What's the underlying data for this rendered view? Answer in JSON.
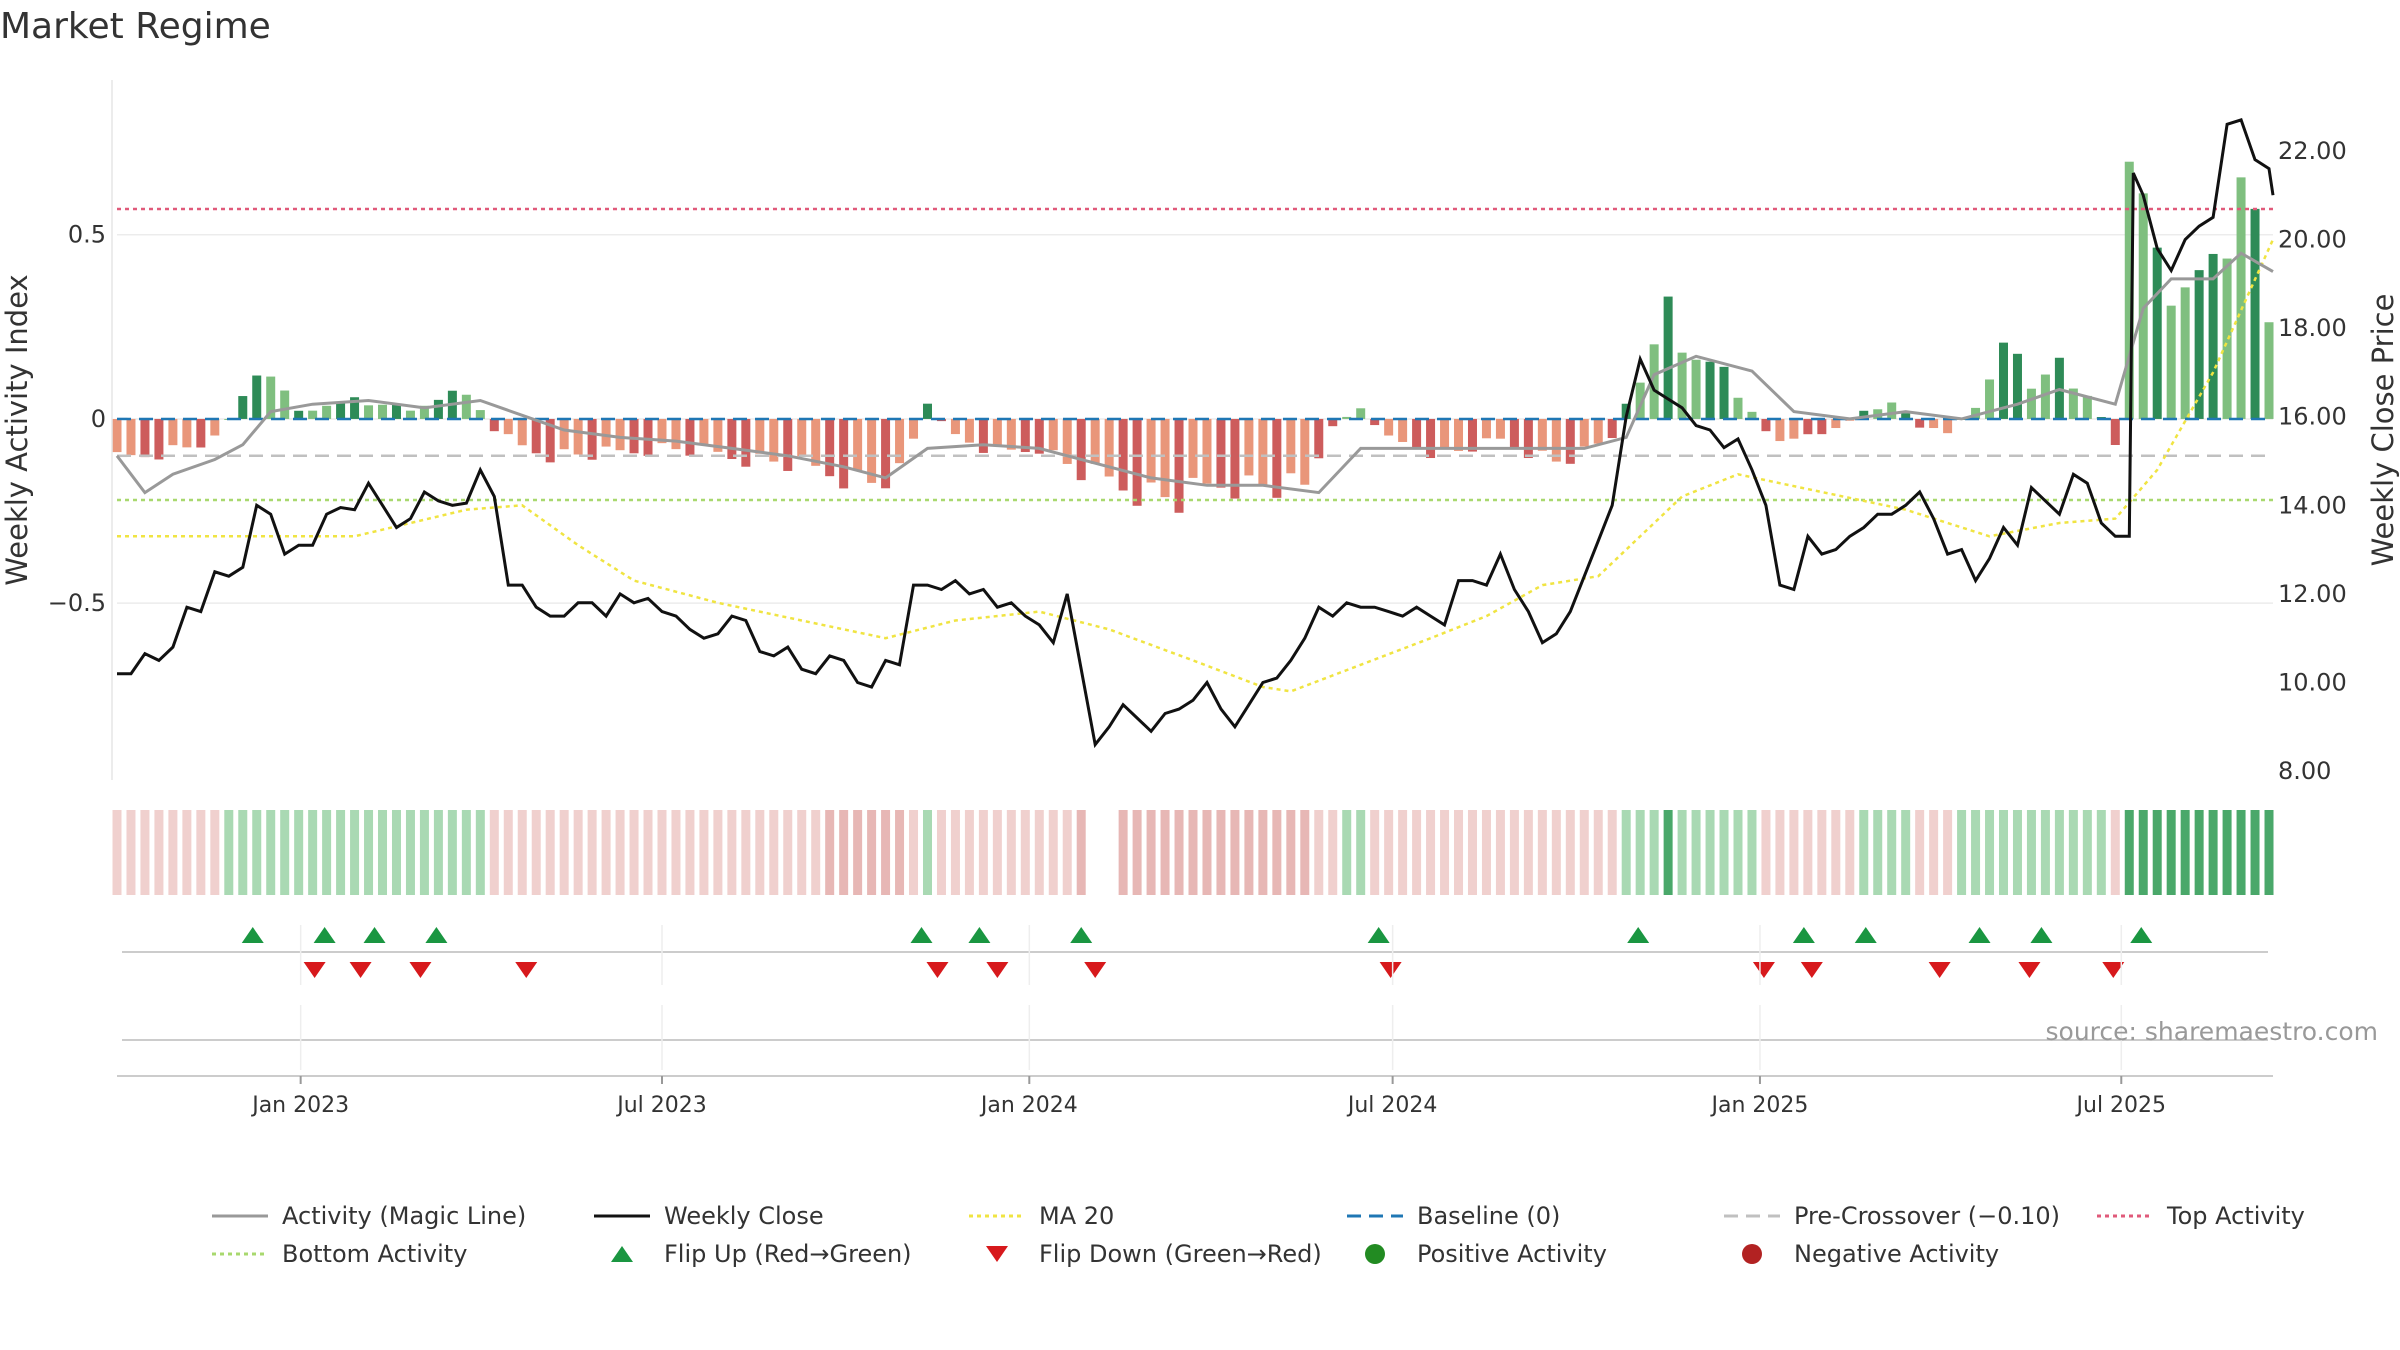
{
  "title": "Market Regime",
  "source": "source: sharemaestro.com",
  "colors": {
    "pos_strong": "#2e8b57",
    "pos_light": "#7fbf7f",
    "neg_strong": "#cd5c5c",
    "neg_light": "#e9967a",
    "close": "#111111",
    "magic": "#999999",
    "ma20": "#f0e442",
    "baseline": "#1f77b4",
    "pre": "#c0c0c0",
    "top": "#e05a7a",
    "bottom": "#a8d86e",
    "flip_up": "#1a9641",
    "flip_down": "#d7191c"
  },
  "chart_data": {
    "type": "bar+line",
    "title": "Market Regime",
    "ylabel_left": "Weekly Activity Index",
    "ylabel_right": "Weekly Close Price",
    "ylim_left": [
      -0.98,
      0.92
    ],
    "ylim_right": [
      7.8,
      23.6
    ],
    "left_ticks": [
      {
        "v": 0.5,
        "label": "0.5"
      },
      {
        "v": 0,
        "label": "0"
      },
      {
        "v": -0.5,
        "label": "−0.5"
      }
    ],
    "right_ticks": [
      {
        "v": 22,
        "label": "22.00"
      },
      {
        "v": 20,
        "label": "20.00"
      },
      {
        "v": 18,
        "label": "18.00"
      },
      {
        "v": 16,
        "label": "16.00"
      },
      {
        "v": 14,
        "label": "14.00"
      },
      {
        "v": 12,
        "label": "12.00"
      },
      {
        "v": 10,
        "label": "10.00"
      },
      {
        "v": 8,
        "label": "8.00"
      }
    ],
    "date_start": "2022-10-01",
    "date_end": "2025-09-15",
    "x_ticks": [
      {
        "date": "2023-01-01",
        "label": "Jan 2023"
      },
      {
        "date": "2023-07-01",
        "label": "Jul 2023"
      },
      {
        "date": "2024-01-01",
        "label": "Jan 2024"
      },
      {
        "date": "2024-07-01",
        "label": "Jul 2024"
      },
      {
        "date": "2025-01-01",
        "label": "Jan 2025"
      },
      {
        "date": "2025-07-01",
        "label": "Jul 2025"
      }
    ],
    "reference_lines": {
      "top_activity": 0.57,
      "pre_crossover": -0.1,
      "bottom_activity": -0.22,
      "baseline": 0
    },
    "activity_anchors": [
      [
        "2022-10-01",
        -0.12
      ],
      [
        "2022-10-15",
        -0.1
      ],
      [
        "2022-11-05",
        -0.08
      ],
      [
        "2022-11-19",
        -0.06
      ],
      [
        "2022-12-03",
        0.06
      ],
      [
        "2022-12-17",
        0.14
      ],
      [
        "2022-12-31",
        0.02
      ],
      [
        "2023-01-14",
        0.04
      ],
      [
        "2023-01-28",
        0.05
      ],
      [
        "2023-02-11",
        0.04
      ],
      [
        "2023-02-25",
        0.03
      ],
      [
        "2023-03-11",
        0.05
      ],
      [
        "2023-03-25",
        0.08
      ],
      [
        "2023-04-08",
        -0.03
      ],
      [
        "2023-04-22",
        -0.08
      ],
      [
        "2023-05-06",
        -0.1
      ],
      [
        "2023-05-20",
        -0.1
      ],
      [
        "2023-06-03",
        -0.1
      ],
      [
        "2023-07-01",
        -0.08
      ],
      [
        "2023-07-29",
        -0.1
      ],
      [
        "2023-08-26",
        -0.12
      ],
      [
        "2023-09-23",
        -0.15
      ],
      [
        "2023-10-14",
        -0.18
      ],
      [
        "2023-10-28",
        -0.16
      ],
      [
        "2023-11-11",
        0.04
      ],
      [
        "2023-11-25",
        -0.05
      ],
      [
        "2023-12-16",
        -0.1
      ],
      [
        "2024-01-06",
        -0.08
      ],
      [
        "2024-01-27",
        -0.15
      ],
      [
        "2024-02-24",
        -0.2
      ],
      [
        "2024-03-16",
        -0.23
      ],
      [
        "2024-04-06",
        -0.18
      ],
      [
        "2024-04-27",
        -0.19
      ],
      [
        "2024-05-18",
        -0.2
      ],
      [
        "2024-05-31",
        -0.02
      ],
      [
        "2024-06-15",
        0.03
      ],
      [
        "2024-06-29",
        -0.06
      ],
      [
        "2024-07-27",
        -0.1
      ],
      [
        "2024-08-24",
        -0.06
      ],
      [
        "2024-09-21",
        -0.12
      ],
      [
        "2024-10-05",
        -0.1
      ],
      [
        "2024-10-19",
        -0.05
      ],
      [
        "2024-11-02",
        0.12
      ],
      [
        "2024-11-16",
        0.3
      ],
      [
        "2024-11-30",
        0.18
      ],
      [
        "2024-12-14",
        0.12
      ],
      [
        "2024-12-28",
        0.02
      ],
      [
        "2025-01-11",
        -0.08
      ],
      [
        "2025-01-25",
        -0.04
      ],
      [
        "2025-02-08",
        -0.03
      ],
      [
        "2025-02-22",
        0.02
      ],
      [
        "2025-03-08",
        0.05
      ],
      [
        "2025-03-22",
        -0.02
      ],
      [
        "2025-04-05",
        -0.04
      ],
      [
        "2025-04-19",
        0.04
      ],
      [
        "2025-05-03",
        0.2
      ],
      [
        "2025-05-17",
        0.1
      ],
      [
        "2025-05-31",
        0.15
      ],
      [
        "2025-06-14",
        0.07
      ],
      [
        "2025-06-28",
        -0.06
      ],
      [
        "2025-07-05",
        0.85
      ],
      [
        "2025-07-19",
        0.42
      ],
      [
        "2025-08-02",
        0.4
      ],
      [
        "2025-08-16",
        0.38
      ],
      [
        "2025-08-30",
        0.68
      ],
      [
        "2025-09-13",
        0.35
      ]
    ],
    "close_anchors": [
      [
        "2022-10-01",
        10.2
      ],
      [
        "2022-10-08",
        10.2
      ],
      [
        "2022-10-15",
        10.65
      ],
      [
        "2022-10-22",
        10.5
      ],
      [
        "2022-10-29",
        10.8
      ],
      [
        "2022-11-05",
        11.7
      ],
      [
        "2022-11-12",
        11.6
      ],
      [
        "2022-11-19",
        12.5
      ],
      [
        "2022-11-26",
        12.4
      ],
      [
        "2022-12-03",
        12.6
      ],
      [
        "2022-12-10",
        14.0
      ],
      [
        "2022-12-17",
        13.8
      ],
      [
        "2022-12-24",
        12.9
      ],
      [
        "2022-12-31",
        13.1
      ],
      [
        "2023-01-07",
        13.1
      ],
      [
        "2023-01-14",
        13.8
      ],
      [
        "2023-01-21",
        13.95
      ],
      [
        "2023-01-28",
        13.9
      ],
      [
        "2023-02-04",
        14.5
      ],
      [
        "2023-02-11",
        14.0
      ],
      [
        "2023-02-18",
        13.5
      ],
      [
        "2023-02-25",
        13.7
      ],
      [
        "2023-03-04",
        14.3
      ],
      [
        "2023-03-11",
        14.1
      ],
      [
        "2023-03-18",
        14.0
      ],
      [
        "2023-03-25",
        14.05
      ],
      [
        "2023-04-01",
        14.8
      ],
      [
        "2023-04-08",
        14.2
      ],
      [
        "2023-04-15",
        12.2
      ],
      [
        "2023-04-22",
        12.2
      ],
      [
        "2023-04-29",
        11.7
      ],
      [
        "2023-05-06",
        11.5
      ],
      [
        "2023-05-13",
        11.5
      ],
      [
        "2023-05-20",
        11.8
      ],
      [
        "2023-05-27",
        11.8
      ],
      [
        "2023-06-03",
        11.5
      ],
      [
        "2023-06-10",
        12.0
      ],
      [
        "2023-06-17",
        11.8
      ],
      [
        "2023-06-24",
        11.9
      ],
      [
        "2023-07-01",
        11.6
      ],
      [
        "2023-07-08",
        11.5
      ],
      [
        "2023-07-15",
        11.2
      ],
      [
        "2023-07-22",
        11.0
      ],
      [
        "2023-07-29",
        11.1
      ],
      [
        "2023-08-05",
        11.5
      ],
      [
        "2023-08-12",
        11.4
      ],
      [
        "2023-08-19",
        10.7
      ],
      [
        "2023-08-26",
        10.6
      ],
      [
        "2023-09-02",
        10.8
      ],
      [
        "2023-09-09",
        10.3
      ],
      [
        "2023-09-16",
        10.2
      ],
      [
        "2023-09-23",
        10.6
      ],
      [
        "2023-09-30",
        10.5
      ],
      [
        "2023-10-07",
        10.0
      ],
      [
        "2023-10-14",
        9.9
      ],
      [
        "2023-10-21",
        10.5
      ],
      [
        "2023-10-28",
        10.4
      ],
      [
        "2023-11-04",
        12.2
      ],
      [
        "2023-11-11",
        12.2
      ],
      [
        "2023-11-18",
        12.1
      ],
      [
        "2023-11-25",
        12.3
      ],
      [
        "2023-12-02",
        12.0
      ],
      [
        "2023-12-09",
        12.1
      ],
      [
        "2023-12-16",
        11.7
      ],
      [
        "2023-12-23",
        11.8
      ],
      [
        "2023-12-30",
        11.5
      ],
      [
        "2024-01-06",
        11.3
      ],
      [
        "2024-01-13",
        10.9
      ],
      [
        "2024-01-20",
        12.0
      ],
      [
        "2024-01-27",
        10.3
      ],
      [
        "2024-02-03",
        8.6
      ],
      [
        "2024-02-10",
        9.0
      ],
      [
        "2024-02-17",
        9.5
      ],
      [
        "2024-02-24",
        9.2
      ],
      [
        "2024-03-02",
        8.9
      ],
      [
        "2024-03-09",
        9.3
      ],
      [
        "2024-03-16",
        9.4
      ],
      [
        "2024-03-23",
        9.6
      ],
      [
        "2024-03-30",
        10.0
      ],
      [
        "2024-04-06",
        9.4
      ],
      [
        "2024-04-13",
        9.0
      ],
      [
        "2024-04-20",
        9.5
      ],
      [
        "2024-04-27",
        10.0
      ],
      [
        "2024-05-04",
        10.1
      ],
      [
        "2024-05-11",
        10.5
      ],
      [
        "2024-05-18",
        11.0
      ],
      [
        "2024-05-25",
        11.7
      ],
      [
        "2024-06-01",
        11.5
      ],
      [
        "2024-06-08",
        11.8
      ],
      [
        "2024-06-15",
        11.7
      ],
      [
        "2024-06-22",
        11.7
      ],
      [
        "2024-06-29",
        11.6
      ],
      [
        "2024-07-06",
        11.5
      ],
      [
        "2024-07-13",
        11.7
      ],
      [
        "2024-07-20",
        11.5
      ],
      [
        "2024-07-27",
        11.3
      ],
      [
        "2024-08-03",
        12.3
      ],
      [
        "2024-08-10",
        12.3
      ],
      [
        "2024-08-17",
        12.2
      ],
      [
        "2024-08-24",
        12.9
      ],
      [
        "2024-08-31",
        12.1
      ],
      [
        "2024-09-07",
        11.6
      ],
      [
        "2024-09-14",
        10.9
      ],
      [
        "2024-09-21",
        11.1
      ],
      [
        "2024-09-28",
        11.6
      ],
      [
        "2024-10-05",
        12.4
      ],
      [
        "2024-10-12",
        13.2
      ],
      [
        "2024-10-19",
        14.0
      ],
      [
        "2024-10-26",
        16.0
      ],
      [
        "2024-11-02",
        17.3
      ],
      [
        "2024-11-09",
        16.6
      ],
      [
        "2024-11-16",
        16.4
      ],
      [
        "2024-11-23",
        16.2
      ],
      [
        "2024-11-30",
        15.8
      ],
      [
        "2024-12-07",
        15.7
      ],
      [
        "2024-12-14",
        15.3
      ],
      [
        "2024-12-21",
        15.5
      ],
      [
        "2024-12-28",
        14.8
      ],
      [
        "2025-01-04",
        14.0
      ],
      [
        "2025-01-11",
        12.2
      ],
      [
        "2025-01-18",
        12.1
      ],
      [
        "2025-01-25",
        13.3
      ],
      [
        "2025-02-01",
        12.9
      ],
      [
        "2025-02-08",
        13.0
      ],
      [
        "2025-02-15",
        13.3
      ],
      [
        "2025-02-22",
        13.5
      ],
      [
        "2025-03-01",
        13.8
      ],
      [
        "2025-03-08",
        13.8
      ],
      [
        "2025-03-15",
        14.0
      ],
      [
        "2025-03-22",
        14.3
      ],
      [
        "2025-03-29",
        13.7
      ],
      [
        "2025-04-05",
        12.9
      ],
      [
        "2025-04-12",
        13.0
      ],
      [
        "2025-04-19",
        12.3
      ],
      [
        "2025-04-26",
        12.8
      ],
      [
        "2025-05-03",
        13.5
      ],
      [
        "2025-05-10",
        13.1
      ],
      [
        "2025-05-17",
        14.4
      ],
      [
        "2025-05-24",
        14.1
      ],
      [
        "2025-05-31",
        13.8
      ],
      [
        "2025-06-07",
        14.7
      ],
      [
        "2025-06-14",
        14.5
      ],
      [
        "2025-06-21",
        13.6
      ],
      [
        "2025-06-28",
        13.3
      ],
      [
        "2025-07-05",
        13.3
      ],
      [
        "2025-07-07",
        21.5
      ],
      [
        "2025-07-12",
        21.0
      ],
      [
        "2025-07-19",
        19.8
      ],
      [
        "2025-07-26",
        19.3
      ],
      [
        "2025-08-02",
        20.0
      ],
      [
        "2025-08-09",
        20.3
      ],
      [
        "2025-08-16",
        20.5
      ],
      [
        "2025-08-23",
        22.6
      ],
      [
        "2025-08-30",
        22.7
      ],
      [
        "2025-09-06",
        21.8
      ],
      [
        "2025-09-13",
        21.6
      ],
      [
        "2025-09-15",
        21.0
      ]
    ],
    "magic_anchors": [
      [
        "2022-10-01",
        -0.1
      ],
      [
        "2022-10-15",
        -0.2
      ],
      [
        "2022-10-29",
        -0.15
      ],
      [
        "2022-11-19",
        -0.11
      ],
      [
        "2022-12-03",
        -0.07
      ],
      [
        "2022-12-17",
        0.02
      ],
      [
        "2023-01-07",
        0.04
      ],
      [
        "2023-02-04",
        0.05
      ],
      [
        "2023-03-04",
        0.03
      ],
      [
        "2023-04-01",
        0.05
      ],
      [
        "2023-04-22",
        0.01
      ],
      [
        "2023-05-13",
        -0.03
      ],
      [
        "2023-06-10",
        -0.05
      ],
      [
        "2023-07-08",
        -0.06
      ],
      [
        "2023-08-05",
        -0.08
      ],
      [
        "2023-09-02",
        -0.1
      ],
      [
        "2023-09-30",
        -0.13
      ],
      [
        "2023-10-21",
        -0.16
      ],
      [
        "2023-11-11",
        -0.08
      ],
      [
        "2023-12-09",
        -0.07
      ],
      [
        "2024-01-06",
        -0.08
      ],
      [
        "2024-02-03",
        -0.12
      ],
      [
        "2024-03-02",
        -0.16
      ],
      [
        "2024-03-30",
        -0.18
      ],
      [
        "2024-04-27",
        -0.18
      ],
      [
        "2024-05-25",
        -0.2
      ],
      [
        "2024-06-15",
        -0.08
      ],
      [
        "2024-07-13",
        -0.08
      ],
      [
        "2024-08-10",
        -0.08
      ],
      [
        "2024-09-07",
        -0.08
      ],
      [
        "2024-10-05",
        -0.08
      ],
      [
        "2024-10-26",
        -0.05
      ],
      [
        "2024-11-09",
        0.12
      ],
      [
        "2024-11-30",
        0.17
      ],
      [
        "2024-12-28",
        0.13
      ],
      [
        "2025-01-18",
        0.02
      ],
      [
        "2025-02-15",
        0.0
      ],
      [
        "2025-03-15",
        0.02
      ],
      [
        "2025-04-12",
        0.0
      ],
      [
        "2025-05-10",
        0.04
      ],
      [
        "2025-05-31",
        0.08
      ],
      [
        "2025-06-28",
        0.04
      ],
      [
        "2025-07-12",
        0.3
      ],
      [
        "2025-07-26",
        0.38
      ],
      [
        "2025-08-16",
        0.38
      ],
      [
        "2025-08-30",
        0.45
      ],
      [
        "2025-09-15",
        0.4
      ]
    ],
    "ma20_anchors": [
      [
        "2022-10-01",
        13.3
      ],
      [
        "2023-01-28",
        13.3
      ],
      [
        "2023-03-25",
        13.9
      ],
      [
        "2023-04-22",
        14.0
      ],
      [
        "2023-05-20",
        13.1
      ],
      [
        "2023-06-17",
        12.3
      ],
      [
        "2023-07-29",
        11.8
      ],
      [
        "2023-09-09",
        11.4
      ],
      [
        "2023-10-21",
        11.0
      ],
      [
        "2023-11-25",
        11.4
      ],
      [
        "2024-01-06",
        11.6
      ],
      [
        "2024-02-10",
        11.2
      ],
      [
        "2024-03-23",
        10.5
      ],
      [
        "2024-04-27",
        9.9
      ],
      [
        "2024-05-11",
        9.8
      ],
      [
        "2024-06-15",
        10.4
      ],
      [
        "2024-07-20",
        11.0
      ],
      [
        "2024-08-17",
        11.5
      ],
      [
        "2024-09-14",
        12.2
      ],
      [
        "2024-10-12",
        12.4
      ],
      [
        "2024-10-26",
        13.0
      ],
      [
        "2024-11-23",
        14.2
      ],
      [
        "2024-12-21",
        14.7
      ],
      [
        "2025-01-11",
        14.5
      ],
      [
        "2025-03-15",
        13.9
      ],
      [
        "2025-04-26",
        13.3
      ],
      [
        "2025-05-31",
        13.6
      ],
      [
        "2025-06-28",
        13.7
      ],
      [
        "2025-07-19",
        14.8
      ],
      [
        "2025-08-16",
        17.0
      ],
      [
        "2025-09-15",
        20.0
      ]
    ],
    "regime_gaps": [
      [
        "2024-01-29",
        "2024-02-10"
      ]
    ],
    "flip_up": [
      "2022-12-08",
      "2023-01-13",
      "2023-02-07",
      "2023-03-10",
      "2023-11-08",
      "2023-12-07",
      "2024-01-27",
      "2024-06-24",
      "2024-11-01",
      "2025-01-23",
      "2025-02-23",
      "2025-04-21",
      "2025-05-22",
      "2025-07-11"
    ],
    "flip_down": [
      "2023-01-08",
      "2023-01-31",
      "2023-03-02",
      "2023-04-24",
      "2023-11-16",
      "2023-12-16",
      "2024-02-03",
      "2024-06-30",
      "2025-01-03",
      "2025-01-27",
      "2025-04-01",
      "2025-05-16",
      "2025-06-27"
    ],
    "legend": [
      {
        "label": "Activity (Magic Line)",
        "kind": "line",
        "color": "#999999",
        "dash": ""
      },
      {
        "label": "Weekly Close",
        "kind": "line",
        "color": "#111111",
        "dash": ""
      },
      {
        "label": "MA 20",
        "kind": "line",
        "color": "#f0e442",
        "dash": "4,4"
      },
      {
        "label": "Baseline (0)",
        "kind": "line",
        "color": "#1f77b4",
        "dash": "14,8"
      },
      {
        "label": "Pre-Crossover (−0.10)",
        "kind": "line",
        "color": "#c0c0c0",
        "dash": "14,8"
      },
      {
        "label": "Top Activity",
        "kind": "line",
        "color": "#e05a7a",
        "dash": "4,4"
      },
      {
        "label": "Bottom Activity",
        "kind": "line",
        "color": "#a8d86e",
        "dash": "4,4"
      },
      {
        "label": "Flip Up (Red→Green)",
        "kind": "up",
        "color": "#1a9641",
        "dash": ""
      },
      {
        "label": "Flip Down (Green→Red)",
        "kind": "down",
        "color": "#d7191c",
        "dash": ""
      },
      {
        "label": "Positive Activity",
        "kind": "dot",
        "color": "#228b22",
        "dash": ""
      },
      {
        "label": "Negative Activity",
        "kind": "dot",
        "color": "#b22222",
        "dash": ""
      }
    ]
  }
}
